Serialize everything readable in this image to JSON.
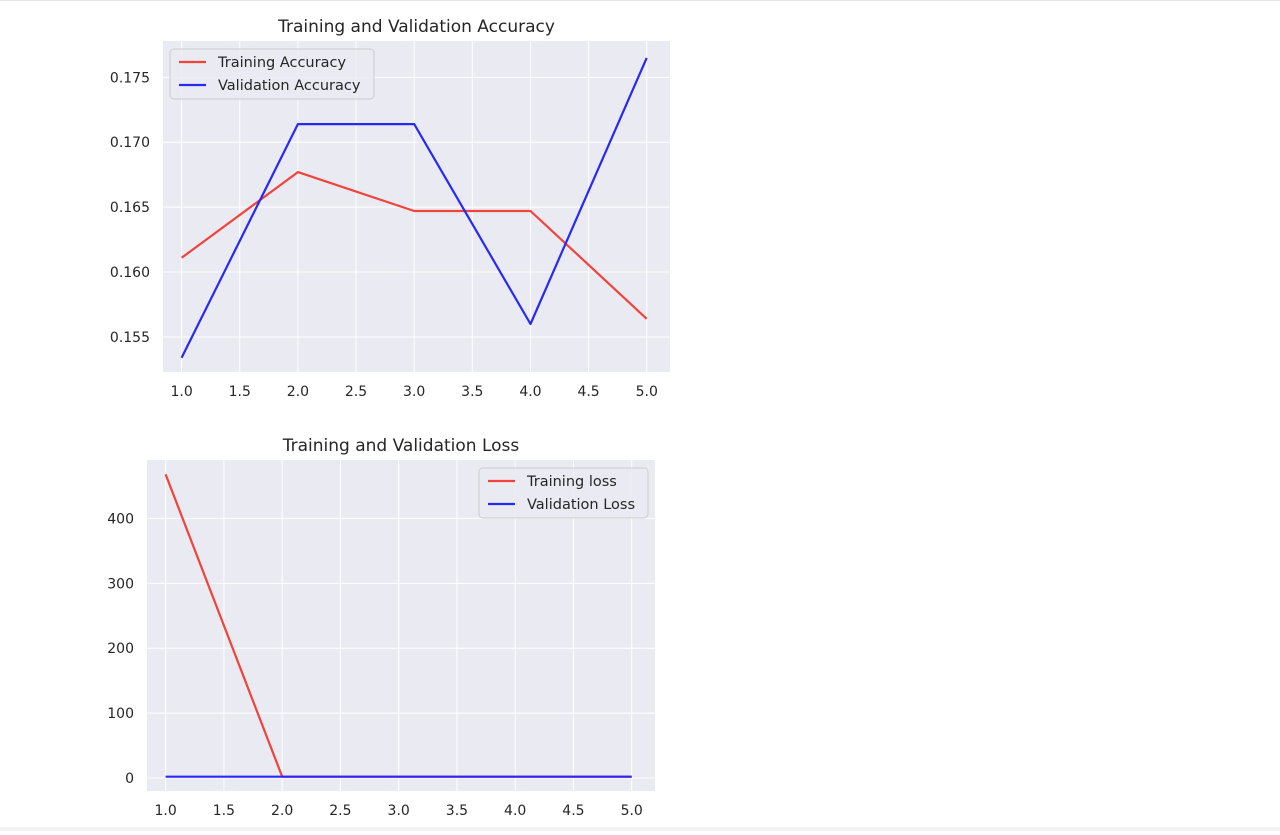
{
  "chart_data": [
    {
      "type": "line",
      "title": "Training and Validation Accuracy",
      "xlabel": "",
      "ylabel": "",
      "x": [
        1,
        2,
        3,
        4,
        5
      ],
      "xticks": [
        "1.0",
        "1.5",
        "2.0",
        "2.5",
        "3.0",
        "3.5",
        "4.0",
        "4.5",
        "5.0"
      ],
      "xtick_values": [
        1.0,
        1.5,
        2.0,
        2.5,
        3.0,
        3.5,
        4.0,
        4.5,
        5.0
      ],
      "yticks": [
        "0.155",
        "0.160",
        "0.165",
        "0.170",
        "0.175"
      ],
      "ytick_values": [
        0.155,
        0.16,
        0.165,
        0.17,
        0.175
      ],
      "xlim": [
        0.84,
        5.2
      ],
      "ylim": [
        0.1523,
        0.1778
      ],
      "grid": true,
      "legend_position": "top-left",
      "series": [
        {
          "name": "Training Accuracy",
          "color": "#f0433a",
          "values": [
            0.1611,
            0.1677,
            0.1647,
            0.1647,
            0.1564
          ]
        },
        {
          "name": "Validation Accuracy",
          "color": "#2929f5",
          "values": [
            0.1534,
            0.1714,
            0.1714,
            0.156,
            0.1765
          ]
        }
      ]
    },
    {
      "type": "line",
      "title": "Training and Validation Loss",
      "xlabel": "",
      "ylabel": "",
      "x": [
        1,
        2,
        3,
        4,
        5
      ],
      "xticks": [
        "1.0",
        "1.5",
        "2.0",
        "2.5",
        "3.0",
        "3.5",
        "4.0",
        "4.5",
        "5.0"
      ],
      "xtick_values": [
        1.0,
        1.5,
        2.0,
        2.5,
        3.0,
        3.5,
        4.0,
        4.5,
        5.0
      ],
      "yticks": [
        "0",
        "100",
        "200",
        "300",
        "400"
      ],
      "ytick_values": [
        0,
        100,
        200,
        300,
        400
      ],
      "xlim": [
        0.84,
        5.2
      ],
      "ylim": [
        -20,
        490
      ],
      "grid": true,
      "legend_position": "top-right",
      "series": [
        {
          "name": "Training loss",
          "color": "#f0433a",
          "values": [
            468,
            2,
            2,
            2,
            2
          ]
        },
        {
          "name": "Validation Loss",
          "color": "#2929f5",
          "values": [
            2,
            2,
            2,
            2,
            2
          ]
        }
      ]
    }
  ],
  "style": {
    "axes_bg": "#eaeaf2",
    "grid_color": "#ffffff",
    "text_color": "#262626",
    "legend_bg": "#eaeaf2",
    "legend_border": "#cccccc"
  }
}
